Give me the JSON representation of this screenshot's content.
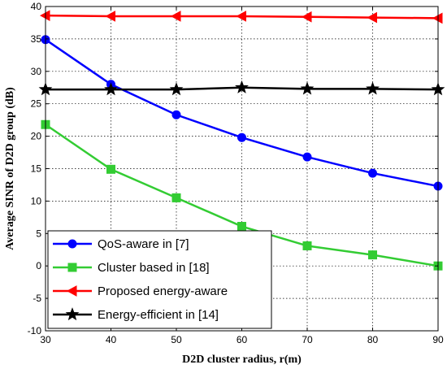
{
  "chart_data": {
    "type": "line",
    "title": "",
    "xlabel": "D2D cluster radius, r(m)",
    "ylabel": "Average SINR of D2D group (dB)",
    "x": [
      30,
      40,
      50,
      60,
      70,
      80,
      90
    ],
    "xlim": [
      30,
      90
    ],
    "ylim": [
      -10,
      40
    ],
    "xticks": [
      30,
      40,
      50,
      60,
      70,
      80,
      90
    ],
    "yticks": [
      -10,
      -5,
      0,
      5,
      10,
      15,
      20,
      25,
      30,
      35,
      40
    ],
    "grid": true,
    "legend_position": "bottom-left",
    "series": [
      {
        "name": "QoS-aware in [7]",
        "color": "#0000ff",
        "marker": "circle",
        "values": [
          34.9,
          28.0,
          23.3,
          19.8,
          16.8,
          14.3,
          12.3
        ]
      },
      {
        "name": "Cluster based in [18]",
        "color": "#33cc33",
        "marker": "square",
        "values": [
          21.8,
          14.9,
          10.5,
          6.1,
          3.1,
          1.7,
          0.0
        ]
      },
      {
        "name": "Proposed energy-aware",
        "color": "#ff0000",
        "marker": "triangle-left",
        "values": [
          38.6,
          38.5,
          38.5,
          38.5,
          38.4,
          38.3,
          38.2
        ]
      },
      {
        "name": "Energy-efficient in [14]",
        "color": "#000000",
        "marker": "star",
        "values": [
          27.2,
          27.2,
          27.2,
          27.5,
          27.3,
          27.3,
          27.2
        ]
      }
    ]
  }
}
